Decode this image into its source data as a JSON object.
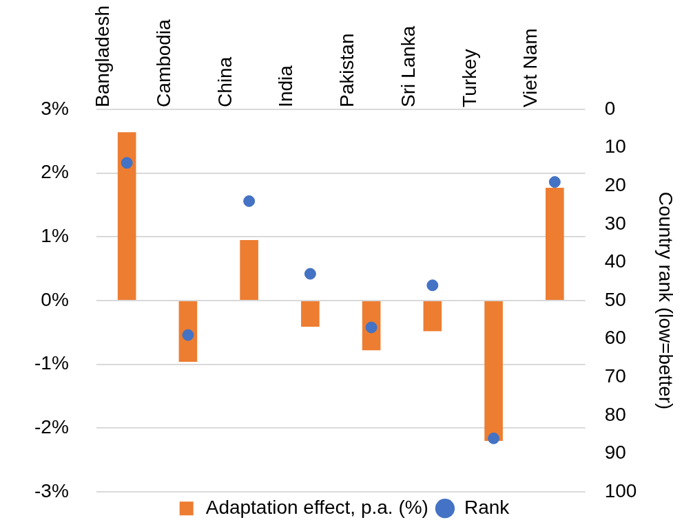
{
  "chart_data": {
    "type": "bar",
    "y2label": "Country rank (low=better)",
    "categories": [
      "Bangladesh",
      "Cambodia",
      "China",
      "India",
      "Pakistan",
      "Sri Lanka",
      "Turkey",
      "Viet Nam"
    ],
    "series": [
      {
        "name": "Adaptation effect, p.a. (%)",
        "color": "#ed7d31",
        "values": [
          2.64,
          -0.96,
          0.95,
          -0.41,
          -0.78,
          -0.48,
          -2.2,
          1.77
        ]
      },
      {
        "name": "Rank",
        "type": "scatter",
        "axis": "y2",
        "color": "#4472c4",
        "values": [
          14,
          59,
          24,
          43,
          57,
          46,
          86,
          19
        ]
      }
    ],
    "ylim": [
      -3,
      3
    ],
    "yticks": [
      {
        "value": -3,
        "label": "-3%"
      },
      {
        "value": -2,
        "label": "-2%"
      },
      {
        "value": -1,
        "label": "-1%"
      },
      {
        "value": 0,
        "label": "0%"
      },
      {
        "value": 1,
        "label": "1%"
      },
      {
        "value": 2,
        "label": "2%"
      },
      {
        "value": 3,
        "label": "3%"
      }
    ],
    "y2lim": [
      100,
      0
    ],
    "y2ticks": [
      0,
      10,
      20,
      30,
      40,
      50,
      60,
      70,
      80,
      90,
      100
    ],
    "grid": "y",
    "legend": "bottom",
    "marker": "circle"
  }
}
